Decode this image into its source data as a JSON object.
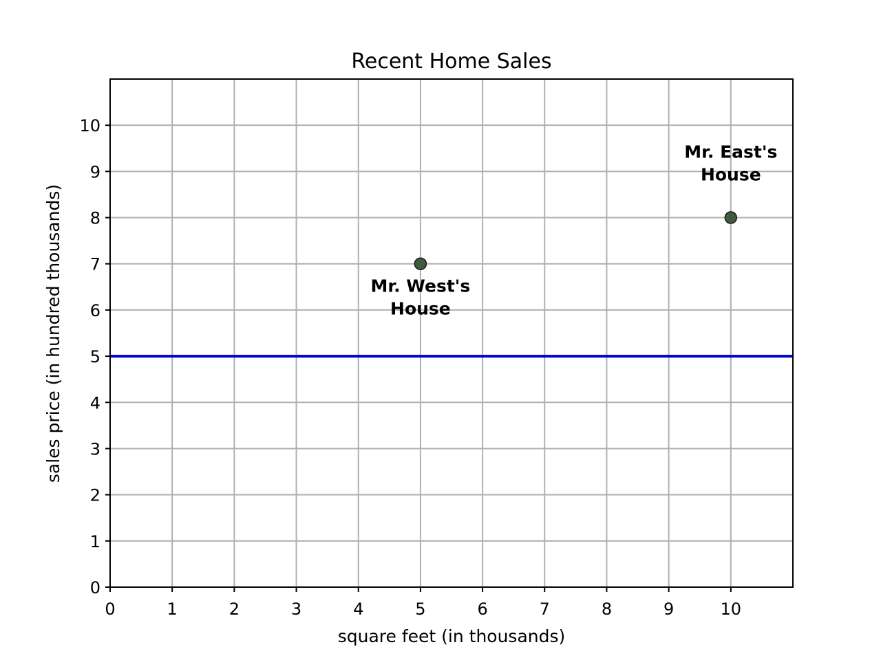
{
  "chart_data": {
    "type": "scatter",
    "title": "Recent Home Sales",
    "xlabel": "square feet (in thousands)",
    "ylabel": "sales price (in hundred thousands)",
    "xlim": [
      0,
      11
    ],
    "ylim": [
      0,
      11
    ],
    "xticks": [
      0,
      1,
      2,
      3,
      4,
      5,
      6,
      7,
      8,
      9,
      10
    ],
    "yticks": [
      0,
      1,
      2,
      3,
      4,
      5,
      6,
      7,
      8,
      9,
      10
    ],
    "grid": true,
    "points": [
      {
        "x": 5,
        "y": 7,
        "label": [
          "Mr. West's",
          "House"
        ],
        "label_position": "below"
      },
      {
        "x": 10,
        "y": 8,
        "label": [
          "Mr. East's",
          "House"
        ],
        "label_position": "above"
      }
    ],
    "hlines": [
      {
        "y": 5,
        "color": "#0000cc"
      }
    ],
    "colors": {
      "point_fill": "#3f5a3f",
      "point_edge": "#1a1a1a",
      "line": "#0000cc",
      "grid": "#b0b0b0"
    }
  }
}
